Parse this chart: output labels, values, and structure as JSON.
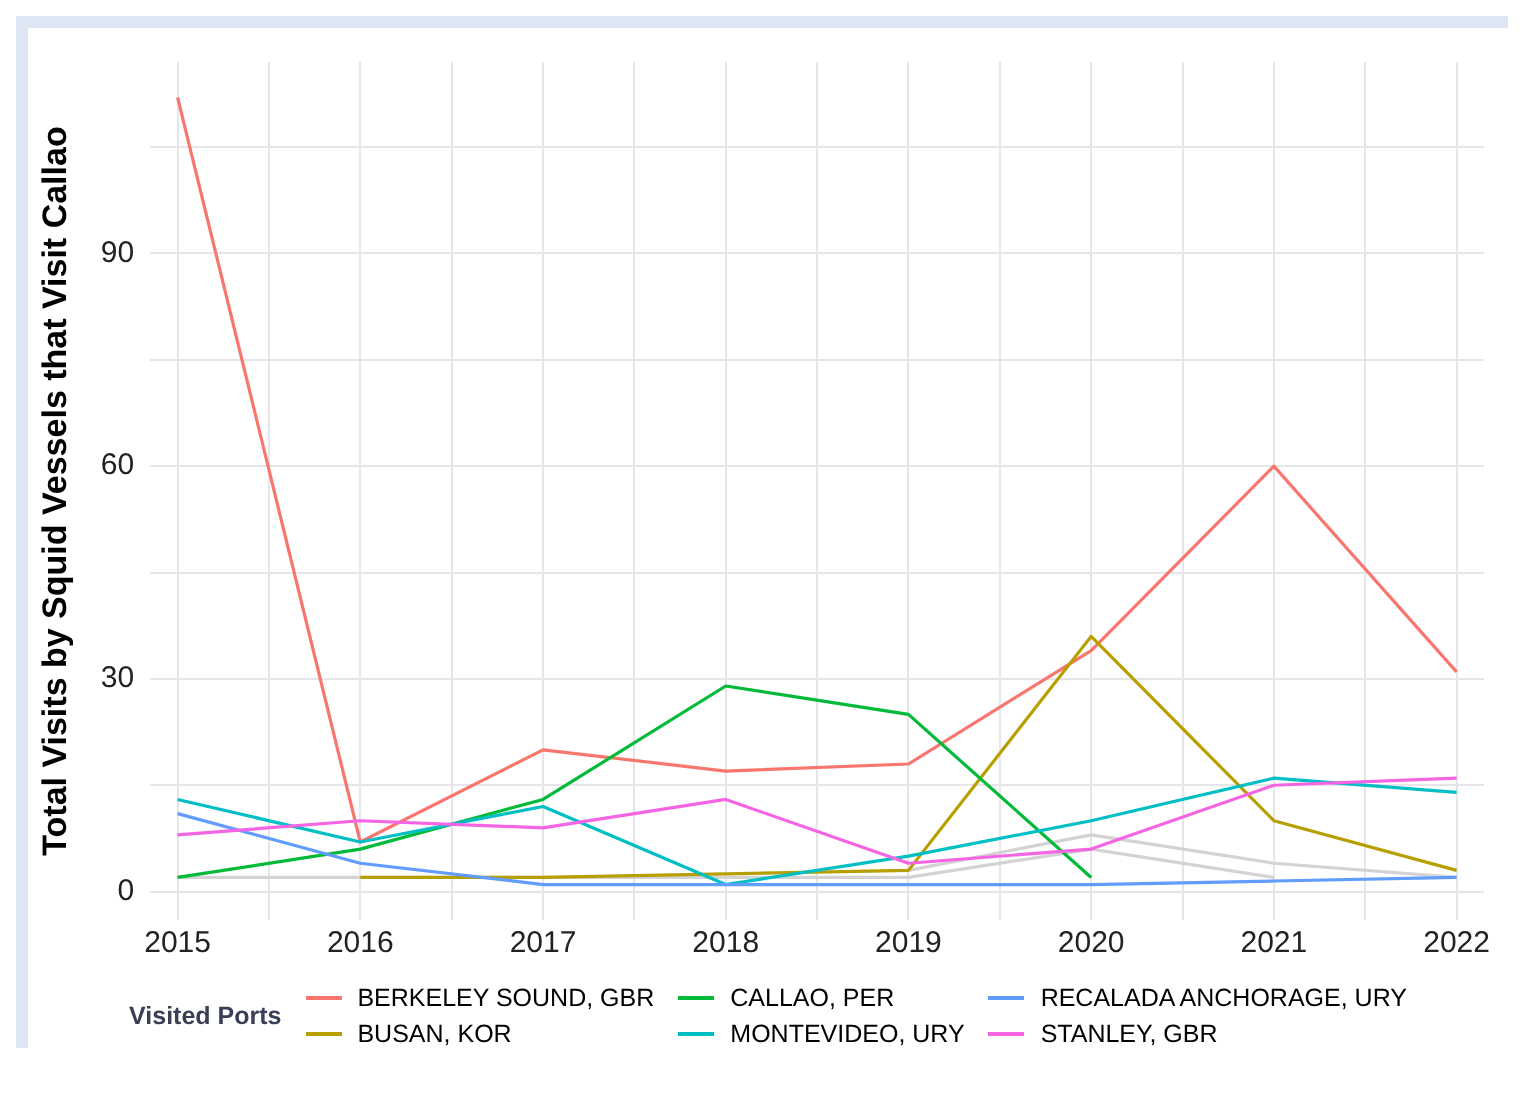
{
  "chart_data": {
    "type": "line",
    "ylabel": "Total Visits by Squid Vessels that Visit Callao",
    "legend_title": "Visited Ports",
    "legend": "bottom",
    "grid": true,
    "marker": "none",
    "line_style": "solid",
    "x": [
      2015,
      2016,
      2017,
      2018,
      2019,
      2020,
      2021,
      2022
    ],
    "xlim": [
      2014.85,
      2022.15
    ],
    "xticks": [
      2015,
      {
        "value": 2015.5,
        "label": null
      },
      2016,
      {
        "value": 2016.5,
        "label": null
      },
      2017,
      {
        "value": 2017.5,
        "label": null
      },
      2018,
      {
        "value": 2018.5,
        "label": null
      },
      2019,
      {
        "value": 2019.5,
        "label": null
      },
      2020,
      {
        "value": 2020.5,
        "label": null
      },
      2021,
      {
        "value": 2021.5,
        "label": null
      },
      2022
    ],
    "ylim": [
      -4,
      117
    ],
    "yticks": [
      0,
      {
        "value": 15,
        "label": null
      },
      30,
      {
        "value": 45,
        "label": null
      },
      60,
      {
        "value": 75,
        "label": null
      },
      90,
      {
        "value": 105,
        "label": null
      }
    ],
    "series": [
      {
        "color": "#d3d3d3",
        "values": [
          2,
          2,
          2,
          2,
          2,
          6,
          2,
          null
        ]
      },
      {
        "color": "#d3d3d3",
        "values": [
          null,
          null,
          null,
          null,
          3,
          8,
          4,
          2
        ]
      },
      {
        "name": "BERKELEY SOUND, GBR",
        "color": "#f8766d",
        "values": [
          112,
          7,
          20,
          17,
          18,
          34,
          60,
          31
        ]
      },
      {
        "name": "BUSAN, KOR",
        "color": "#b79f00",
        "values": [
          null,
          2,
          2,
          2.5,
          3,
          36,
          10,
          3
        ]
      },
      {
        "name": "CALLAO, PER",
        "color": "#00ba38",
        "values": [
          2,
          6,
          13,
          29,
          25,
          2,
          null,
          null
        ]
      },
      {
        "name": "MONTEVIDEO, URY",
        "color": "#00bfc4",
        "values": [
          13,
          7,
          12,
          1,
          5,
          10,
          16,
          14
        ]
      },
      {
        "name": "RECALADA ANCHORAGE, URY",
        "color": "#619cff",
        "values": [
          11,
          4,
          1,
          1,
          1,
          1,
          1.5,
          2
        ]
      },
      {
        "name": "STANLEY, GBR",
        "color": "#f564e3",
        "values": [
          8,
          10,
          9,
          13,
          4,
          6,
          15,
          16
        ]
      }
    ]
  }
}
